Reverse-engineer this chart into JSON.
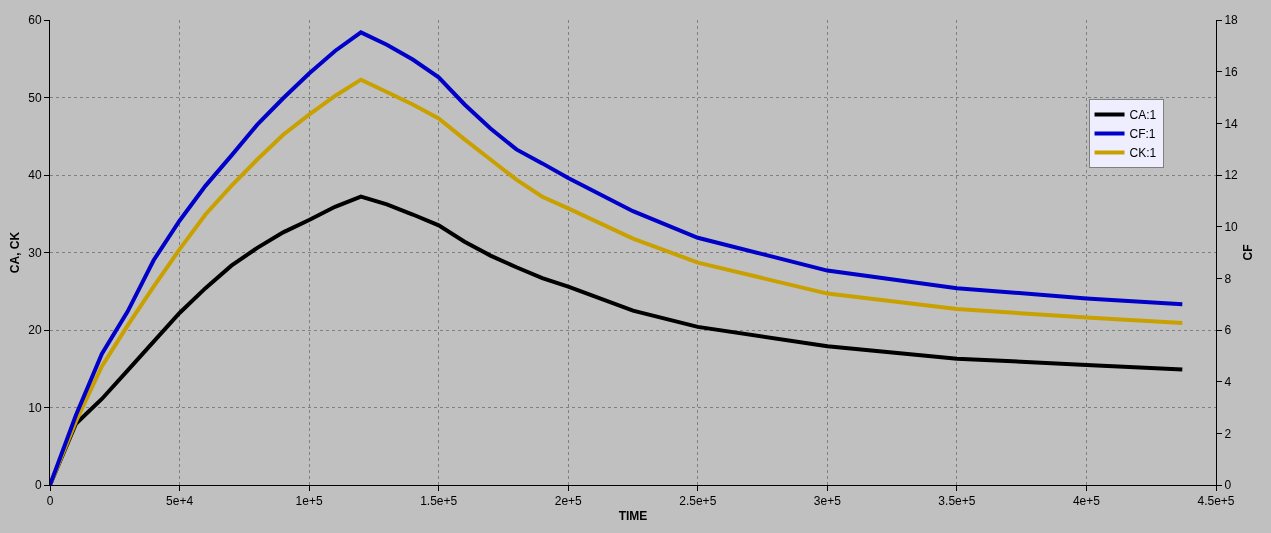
{
  "chart_data": {
    "type": "line",
    "xlabel": "TIME",
    "ylabel": "CA, CK",
    "y2label": "CF",
    "x": [
      0,
      10000,
      20000,
      30000,
      40000,
      50000,
      60000,
      70000,
      80000,
      90000,
      100000,
      110000,
      120000,
      130000,
      140000,
      150000,
      160000,
      170000,
      180000,
      190000,
      200000,
      225000,
      250000,
      300000,
      350000,
      400000,
      437000
    ],
    "series": [
      {
        "name": "CA:1",
        "color": "#000000",
        "values": [
          0,
          7.9,
          11.1,
          14.8,
          18.5,
          22.2,
          25.4,
          28.3,
          30.6,
          32.6,
          34.2,
          35.9,
          37.2,
          36.2,
          34.9,
          33.5,
          31.4,
          29.6,
          28.1,
          26.7,
          25.6,
          22.5,
          20.4,
          17.9,
          16.3,
          15.5,
          14.9
        ]
      },
      {
        "name": "CF:1",
        "color": "#0000c8",
        "axis": "y2",
        "values": [
          0,
          2.7,
          5.07,
          6.72,
          8.7,
          10.23,
          11.58,
          12.75,
          13.95,
          14.97,
          15.93,
          16.8,
          17.52,
          17.04,
          16.47,
          15.78,
          14.73,
          13.8,
          12.99,
          12.45,
          11.88,
          10.6,
          9.57,
          8.3,
          7.62,
          7.22,
          7.0
        ]
      },
      {
        "name": "CK:1",
        "color": "#c8a000",
        "values": [
          0,
          8.2,
          15.3,
          20.6,
          25.6,
          30.4,
          34.9,
          38.6,
          42.0,
          45.2,
          47.8,
          50.2,
          52.3,
          50.7,
          49.1,
          47.3,
          44.6,
          42.0,
          39.4,
          37.2,
          35.7,
          31.8,
          28.7,
          24.7,
          22.7,
          21.6,
          20.9
        ]
      }
    ],
    "xlim": [
      0,
      450000
    ],
    "xticks": [
      0,
      {
        "value": 50000,
        "label": "5e+4"
      },
      {
        "value": 100000,
        "label": "1e+5"
      },
      {
        "value": 150000,
        "label": "1.5e+5"
      },
      {
        "value": 200000,
        "label": "2e+5"
      },
      {
        "value": 250000,
        "label": "2.5e+5"
      },
      {
        "value": 300000,
        "label": "3e+5"
      },
      {
        "value": 350000,
        "label": "3.5e+5"
      },
      {
        "value": 400000,
        "label": "4e+5"
      },
      {
        "value": 450000,
        "label": "4.5e+5"
      }
    ],
    "ylim": [
      0,
      60
    ],
    "yticks": [
      0,
      10,
      20,
      30,
      40,
      50,
      60
    ],
    "y2lim": [
      0,
      18
    ],
    "y2ticks": [
      0,
      2,
      4,
      6,
      8,
      10,
      12,
      14,
      16,
      18
    ],
    "grid": true,
    "legend": "top right",
    "marker": "none",
    "line_style": "solid"
  }
}
